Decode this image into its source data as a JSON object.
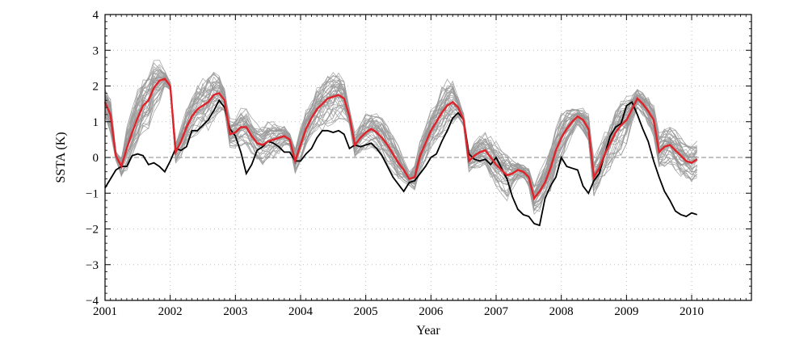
{
  "chart_data": {
    "type": "line",
    "title": "",
    "xlabel": "Year",
    "ylabel": "SSTA (K)",
    "xlim": [
      2001.0,
      2010.917
    ],
    "ylim": [
      -4,
      4
    ],
    "x_ticks": [
      2001,
      2002,
      2003,
      2004,
      2005,
      2006,
      2007,
      2008,
      2009,
      2010
    ],
    "x_tick_labels": [
      "2001",
      "2002",
      "2003",
      "2004",
      "2005",
      "2006",
      "2007",
      "2008",
      "2009",
      "2010"
    ],
    "y_ticks": [
      -4,
      -3,
      -2,
      -1,
      0,
      1,
      2,
      3,
      4
    ],
    "y_tick_labels": [
      "−4",
      "−3",
      "−2",
      "−1",
      "0",
      "1",
      "2",
      "3",
      "4"
    ],
    "grid": true,
    "legend": "none",
    "colors": {
      "observed": "#000000",
      "ensemble_mean": "#e0232b",
      "ensemble_members": "#9a9a9a",
      "zero_line": "#888888",
      "grid": "#bdbdbd"
    },
    "ensemble_member_count": 40,
    "ensemble_spread_k": [
      0.45,
      0.55,
      0.15,
      0.3,
      0.6,
      0.7,
      0.8,
      0.85,
      0.9,
      0.8,
      0.65,
      0.25,
      0.15,
      0.35,
      0.45,
      0.55,
      0.6,
      0.75,
      0.8,
      0.85,
      0.8,
      0.6,
      0.35,
      0.45,
      0.5,
      0.55,
      0.55,
      0.55,
      0.55,
      0.6,
      0.6,
      0.55,
      0.45,
      0.3,
      0.2,
      0.45,
      0.5,
      0.55,
      0.6,
      0.7,
      0.75,
      0.8,
      0.8,
      0.7,
      0.6,
      0.25,
      0.35,
      0.45,
      0.55,
      0.55,
      0.55,
      0.6,
      0.6,
      0.6,
      0.55,
      0.35,
      0.2,
      0.4,
      0.5,
      0.55,
      0.6,
      0.7,
      0.75,
      0.75,
      0.65,
      0.3,
      0.2,
      0.3,
      0.4,
      0.5,
      0.55,
      0.6,
      0.65,
      0.7,
      0.7,
      0.5,
      0.3,
      0.2,
      0.3,
      0.45,
      0.55,
      0.6,
      0.65,
      0.7,
      0.7,
      0.65,
      0.45,
      0.25,
      0.35,
      0.45,
      0.55,
      0.6,
      0.65,
      0.7,
      0.8,
      0.85,
      0.7,
      0.4,
      0.3,
      0.4,
      0.45,
      0.5,
      0.55,
      0.6,
      0.6,
      0.6,
      0.6,
      0.6,
      0.6,
      0.6
    ],
    "series": [
      {
        "name": "",
        "values": [
          -0.85,
          -0.6,
          -0.35,
          -0.25,
          -0.25,
          0.05,
          0.1,
          0.05,
          -0.2,
          -0.15,
          -0.25,
          -0.4,
          -0.1,
          0.25,
          0.2,
          0.3,
          0.75,
          0.75,
          0.9,
          1.05,
          1.3,
          1.6,
          1.4,
          0.8,
          0.6,
          0.15,
          -0.45,
          -0.2,
          0.2,
          0.3,
          0.45,
          0.4,
          0.3,
          0.15,
          0.15,
          -0.1,
          -0.1,
          0.1,
          0.25,
          0.55,
          0.75,
          0.75,
          0.7,
          0.75,
          0.65,
          0.25,
          0.35,
          0.3,
          0.35,
          0.4,
          0.25,
          0.05,
          -0.25,
          -0.55,
          -0.75,
          -0.95,
          -0.7,
          -0.65,
          -0.45,
          -0.25,
          0.0,
          0.1,
          0.45,
          0.75,
          1.1,
          1.25,
          1.05,
          0.1,
          -0.05,
          -0.1,
          -0.05,
          -0.2,
          0.0,
          -0.3,
          -0.6,
          -1.1,
          -1.45,
          -1.6,
          -1.65,
          -1.85,
          -1.9,
          -1.15,
          -0.8,
          -0.55,
          0.0,
          -0.25,
          -0.3,
          -0.35,
          -0.8,
          -1.0,
          -0.65,
          -0.45,
          0.1,
          0.6,
          0.85,
          0.95,
          1.45,
          1.55,
          1.2,
          0.8,
          0.45,
          -0.1,
          -0.55,
          -0.95,
          -1.2,
          -1.5,
          -1.6,
          -1.65,
          -1.55,
          -1.6
        ]
      },
      {
        "name": "",
        "values": [
          1.55,
          1.2,
          0.05,
          -0.25,
          0.25,
          0.7,
          1.1,
          1.45,
          1.6,
          1.95,
          2.15,
          2.2,
          2.0,
          0.15,
          0.45,
          0.85,
          1.15,
          1.35,
          1.45,
          1.55,
          1.75,
          1.8,
          1.6,
          0.65,
          0.7,
          0.85,
          0.85,
          0.6,
          0.4,
          0.35,
          0.45,
          0.5,
          0.55,
          0.6,
          0.5,
          -0.1,
          0.35,
          0.8,
          1.1,
          1.35,
          1.5,
          1.65,
          1.7,
          1.75,
          1.65,
          1.15,
          0.35,
          0.55,
          0.7,
          0.8,
          0.7,
          0.55,
          0.35,
          0.1,
          -0.15,
          -0.35,
          -0.6,
          -0.55,
          0.05,
          0.4,
          0.75,
          1.0,
          1.25,
          1.45,
          1.55,
          1.4,
          1.05,
          -0.1,
          0.05,
          0.15,
          0.2,
          0.0,
          -0.2,
          -0.35,
          -0.5,
          -0.45,
          -0.35,
          -0.4,
          -0.55,
          -1.15,
          -0.95,
          -0.7,
          -0.3,
          0.2,
          0.55,
          0.8,
          1.0,
          1.15,
          1.05,
          0.8,
          -0.55,
          -0.3,
          0.1,
          0.4,
          0.7,
          0.9,
          1.05,
          1.35,
          1.65,
          1.5,
          1.3,
          1.05,
          0.15,
          0.3,
          0.35,
          0.2,
          0.05,
          -0.1,
          -0.15,
          -0.05
        ]
      }
    ]
  }
}
